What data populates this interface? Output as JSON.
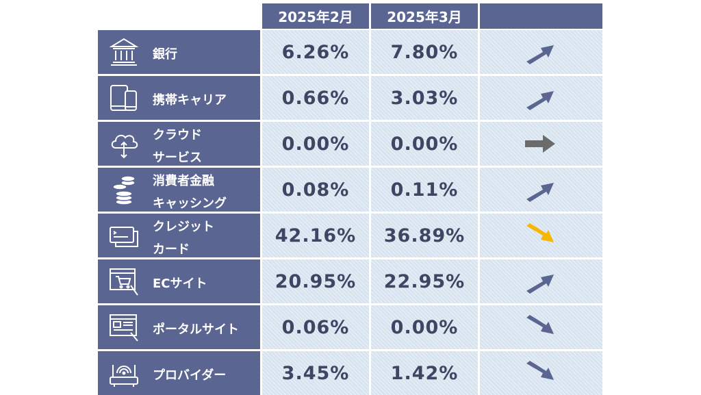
{
  "header": {
    "col1": "2025年2月",
    "col2": "2025年3月"
  },
  "colors": {
    "header_bg": "#5b6591",
    "label_bg": "#5b6591",
    "cell_bg": "#d8e3f0",
    "value_text": "#3f4663",
    "arrow_navy": "#5b6591",
    "arrow_gray": "#6b6b6b",
    "arrow_yellow": "#f5b700"
  },
  "rows": [
    {
      "label": "銀行",
      "icon": "bank-icon",
      "feb": "6.26%",
      "mar": "7.80%",
      "trend": "up"
    },
    {
      "label": "携帯キャリア",
      "icon": "mobile-devices-icon",
      "feb": "0.66%",
      "mar": "3.03%",
      "trend": "up"
    },
    {
      "label_line1": "クラウド",
      "label_line2": "サービス",
      "icon": "cloud-icon",
      "feb": "0.00%",
      "mar": "0.00%",
      "trend": "flat"
    },
    {
      "label_line1": "消費者金融",
      "label_line2": "キャッシング",
      "icon": "coins-icon",
      "feb": "0.08%",
      "mar": "0.11%",
      "trend": "up"
    },
    {
      "label_line1": "クレジット",
      "label_line2": "カード",
      "icon": "credit-card-icon",
      "feb": "42.16%",
      "mar": "36.89%",
      "trend": "down-highlight"
    },
    {
      "label": "ECサイト",
      "icon": "shopping-cart-icon",
      "feb": "20.95%",
      "mar": "22.95%",
      "trend": "up"
    },
    {
      "label": "ポータルサイト",
      "icon": "portal-site-icon",
      "feb": "0.06%",
      "mar": "0.00%",
      "trend": "down"
    },
    {
      "label": "プロバイダー",
      "icon": "router-icon",
      "feb": "3.45%",
      "mar": "1.42%",
      "trend": "down"
    }
  ]
}
